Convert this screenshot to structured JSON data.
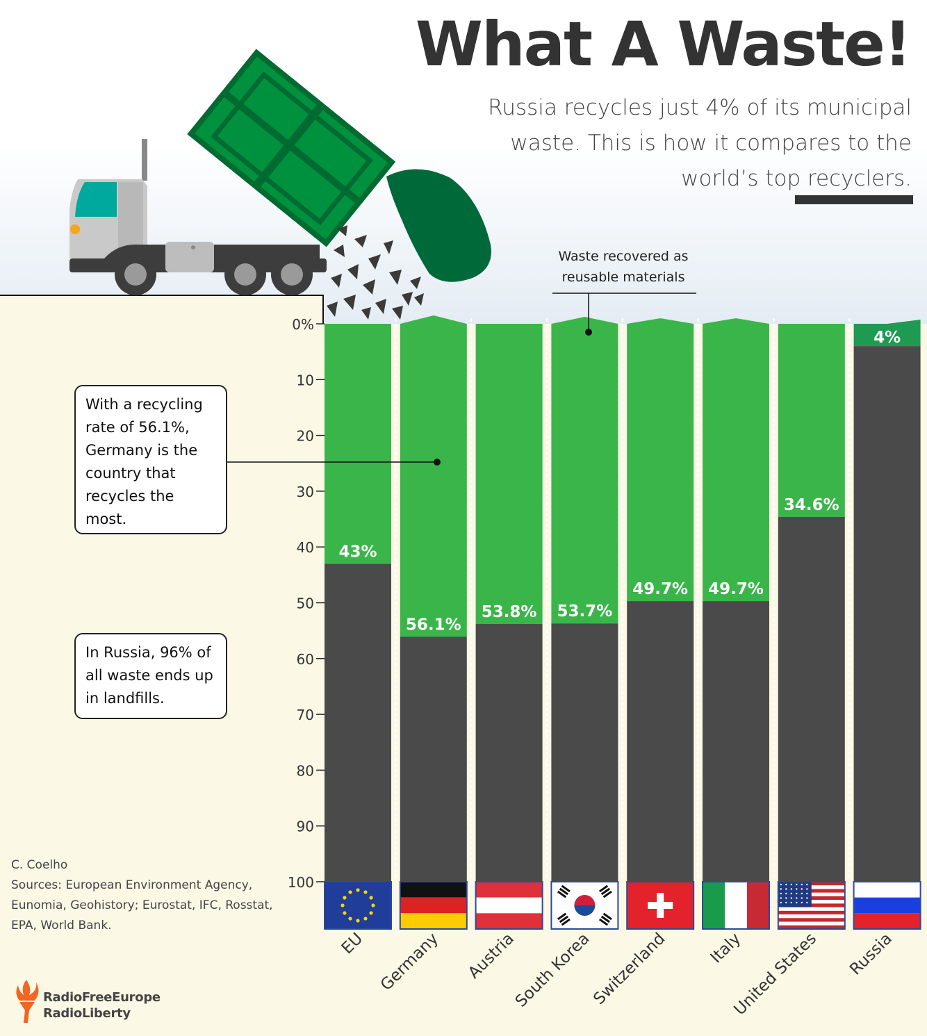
{
  "title": "What A Waste!",
  "subtitle": "Russia recycles just 4% of its municipal waste. This is how it compares to the world’s top recyclers.",
  "annotations": {
    "top": "Waste recovered as reusable materials",
    "germany": "With a recycling rate of 56.1%, Germany is the country that recycles the most.",
    "russia": "In Russia, 96% of all waste ends up in landfills."
  },
  "credits": {
    "author": "C. Coelho",
    "sources": "Sources: European Environment Agency, Eunomia, Geohistory; Eurostat, IFC, Rosstat, EPA, World Bank."
  },
  "logo": {
    "line1": "RadioFreeEurope",
    "line2": "RadioLiberty",
    "icon": "torch-icon"
  },
  "colors": {
    "recycled": "#3ab54a",
    "recycled_small": "#1e9a52",
    "landfill": "#4a4a4a",
    "truck_green": "#00913f",
    "bin_green": "#00693a"
  },
  "chart_data": {
    "type": "bar",
    "stacked": true,
    "inverted_axis": true,
    "categories": [
      "EU",
      "Germany",
      "Austria",
      "South Korea",
      "Switzerland",
      "Italy",
      "United States",
      "Russia"
    ],
    "series": [
      {
        "name": "Waste recovered as reusable materials",
        "values": [
          43,
          56.1,
          53.8,
          53.7,
          49.7,
          49.7,
          34.6,
          4
        ]
      },
      {
        "values": [
          57,
          43.9,
          46.2,
          46.3,
          50.3,
          50.3,
          65.4,
          96
        ]
      }
    ],
    "value_labels": [
      "43%",
      "56.1%",
      "53.8%",
      "53.7%",
      "49.7%",
      "49.7%",
      "34.6%",
      "4%"
    ],
    "yticks": [
      "0%",
      "10",
      "20",
      "30",
      "40",
      "50",
      "60",
      "70",
      "80",
      "90",
      "100"
    ],
    "ylim": [
      0,
      100
    ],
    "flags": [
      "eu-flag-icon",
      "germany-flag-icon",
      "austria-flag-icon",
      "south-korea-flag-icon",
      "switzerland-flag-icon",
      "italy-flag-icon",
      "united-states-flag-icon",
      "russia-flag-icon"
    ]
  }
}
